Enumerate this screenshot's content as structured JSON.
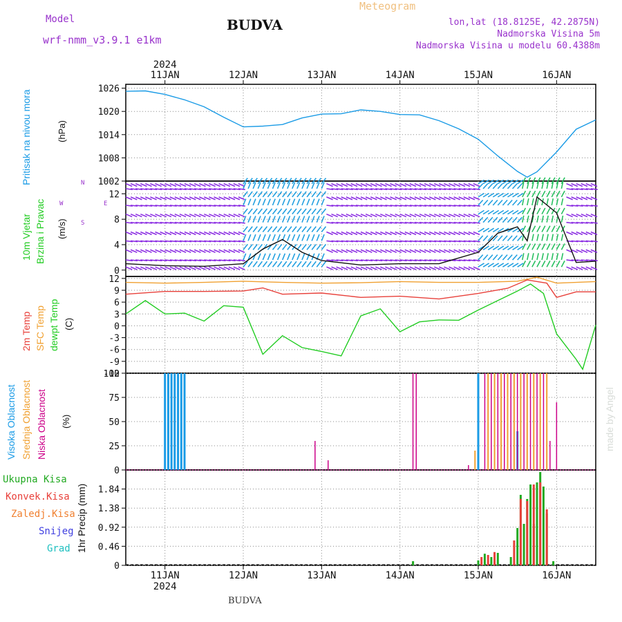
{
  "header": {
    "station": "BUDVA",
    "model_label": "Model",
    "model_name": "wrf-nmm_v3.9.1 e1km",
    "product": "Meteogram",
    "lonlat": "lon,lat (18.8125E, 42.2875N)",
    "elevation": "Nadmorska Visina 5m",
    "model_elevation": "Nadmorska Visina u modelu 60.4388m",
    "watermark": "made by Angel",
    "footer_station": "BUDVA"
  },
  "time_axis": {
    "year": "2024",
    "days": [
      "11JAN",
      "12JAN",
      "13JAN",
      "14JAN",
      "15JAN",
      "16JAN"
    ],
    "start": "2024-01-10T12:00",
    "end": "2024-01-16T12:00"
  },
  "colors": {
    "pressure": "#1a9be6",
    "temp2m": "#e8403a",
    "sfc_temp": "#f0a030",
    "dewpoint": "#22cc22",
    "wind_low": "#8a2be2",
    "wind_mid": "#22a0e0",
    "wind_high": "#28c060",
    "cloud_high": "#1a9be6",
    "cloud_mid": "#f0a030",
    "cloud_low": "#cc0088",
    "precip_total": "#22aa22",
    "precip_conv": "#e8403a",
    "precip_frozen": "#f08030",
    "snow": "#4040e0",
    "hail": "#20c0c0",
    "title_purple": "#9933cc",
    "meteogram_orange": "#f0c080"
  },
  "chart_data": [
    {
      "type": "line",
      "id": "pressure",
      "ylabel": [
        "Pritisak na nivou mora",
        "(hPa)"
      ],
      "ylim": [
        1002,
        1027
      ],
      "yticks": [
        1002,
        1008,
        1014,
        1020,
        1026
      ],
      "grid": true,
      "series": [
        {
          "name": "Pritisak na nivou mora",
          "x": [
            "2024-01-10T12:00",
            "2024-01-10T18:00",
            "2024-01-11T00:00",
            "2024-01-11T06:00",
            "2024-01-11T12:00",
            "2024-01-11T18:00",
            "2024-01-12T00:00",
            "2024-01-12T06:00",
            "2024-01-12T12:00",
            "2024-01-12T18:00",
            "2024-01-13T00:00",
            "2024-01-13T06:00",
            "2024-01-13T12:00",
            "2024-01-13T18:00",
            "2024-01-14T00:00",
            "2024-01-14T06:00",
            "2024-01-14T12:00",
            "2024-01-14T18:00",
            "2024-01-15T00:00",
            "2024-01-15T06:00",
            "2024-01-15T12:00",
            "2024-01-15T15:00",
            "2024-01-15T18:00",
            "2024-01-16T00:00",
            "2024-01-16T06:00",
            "2024-01-16T12:00"
          ],
          "y": [
            1025.2,
            1025.3,
            1024.4,
            1023.0,
            1021.2,
            1018.5,
            1016.0,
            1016.2,
            1016.6,
            1018.3,
            1019.3,
            1019.4,
            1020.4,
            1020.0,
            1019.2,
            1019.1,
            1017.6,
            1015.5,
            1012.8,
            1008.5,
            1004.5,
            1003.0,
            1004.4,
            1009.5,
            1015.4,
            1017.8
          ]
        }
      ]
    },
    {
      "type": "line",
      "id": "wind",
      "ylabel": [
        "10m Vjetar",
        "Brzina i Pravac",
        "(m/s)"
      ],
      "compass": [
        "N",
        "W",
        "E",
        "S"
      ],
      "ylim": [
        -1,
        14
      ],
      "yticks": [
        0,
        4,
        8,
        12
      ],
      "grid": true,
      "note": "wind barbs drawn as arrows; colours vary by speed",
      "series": [
        {
          "name": "Brzina",
          "x": [
            "2024-01-10T12:00",
            "2024-01-11T00:00",
            "2024-01-11T12:00",
            "2024-01-12T00:00",
            "2024-01-12T06:00",
            "2024-01-12T12:00",
            "2024-01-12T18:00",
            "2024-01-13T00:00",
            "2024-01-13T12:00",
            "2024-01-14T00:00",
            "2024-01-14T12:00",
            "2024-01-15T00:00",
            "2024-01-15T06:00",
            "2024-01-15T12:00",
            "2024-01-15T15:00",
            "2024-01-15T18:00",
            "2024-01-16T00:00",
            "2024-01-16T06:00",
            "2024-01-16T12:00"
          ],
          "y": [
            1.0,
            0.7,
            0.6,
            1.0,
            3.3,
            4.8,
            2.8,
            1.5,
            0.8,
            1.0,
            1.0,
            2.8,
            5.8,
            6.8,
            4.6,
            11.5,
            9.0,
            1.2,
            1.4
          ]
        }
      ]
    },
    {
      "type": "line",
      "id": "temperature",
      "ylabel": [
        "2m Temp",
        "SFC Temp",
        "dewpt Temp",
        "(C)"
      ],
      "ylim": [
        -12,
        12.5
      ],
      "yticks": [
        -12,
        -9,
        -6,
        -3,
        0,
        3,
        6,
        9,
        12
      ],
      "grid": true,
      "series": [
        {
          "name": "2m Temp",
          "x": [
            "2024-01-10T12:00",
            "2024-01-11T00:00",
            "2024-01-11T12:00",
            "2024-01-12T00:00",
            "2024-01-12T06:00",
            "2024-01-12T12:00",
            "2024-01-13T00:00",
            "2024-01-13T12:00",
            "2024-01-14T00:00",
            "2024-01-14T12:00",
            "2024-01-15T00:00",
            "2024-01-15T09:00",
            "2024-01-15T15:00",
            "2024-01-15T21:00",
            "2024-01-16T00:00",
            "2024-01-16T06:00",
            "2024-01-16T12:00"
          ],
          "y": [
            8.0,
            8.7,
            8.7,
            8.8,
            9.6,
            8.0,
            8.3,
            7.2,
            7.5,
            6.8,
            8.2,
            9.5,
            11.6,
            10.8,
            7.2,
            8.6,
            8.6
          ]
        },
        {
          "name": "SFC Temp",
          "x": [
            "2024-01-10T12:00",
            "2024-01-11T00:00",
            "2024-01-11T12:00",
            "2024-01-12T00:00",
            "2024-01-12T12:00",
            "2024-01-13T00:00",
            "2024-01-13T12:00",
            "2024-01-14T00:00",
            "2024-01-14T12:00",
            "2024-01-15T00:00",
            "2024-01-15T12:00",
            "2024-01-15T18:00",
            "2024-01-16T00:00",
            "2024-01-16T12:00"
          ],
          "y": [
            11.0,
            10.8,
            11.0,
            11.3,
            11.0,
            10.8,
            10.9,
            11.2,
            11.0,
            11.0,
            11.3,
            12.3,
            10.8,
            11.2
          ]
        },
        {
          "name": "dewpt Temp",
          "x": [
            "2024-01-10T12:00",
            "2024-01-10T18:00",
            "2024-01-11T00:00",
            "2024-01-11T06:00",
            "2024-01-11T12:00",
            "2024-01-11T18:00",
            "2024-01-12T00:00",
            "2024-01-12T06:00",
            "2024-01-12T12:00",
            "2024-01-12T18:00",
            "2024-01-13T00:00",
            "2024-01-13T06:00",
            "2024-01-13T12:00",
            "2024-01-13T18:00",
            "2024-01-14T00:00",
            "2024-01-14T06:00",
            "2024-01-14T12:00",
            "2024-01-14T18:00",
            "2024-01-15T00:00",
            "2024-01-15T06:00",
            "2024-01-15T12:00",
            "2024-01-15T16:00",
            "2024-01-15T20:00",
            "2024-01-16T00:00",
            "2024-01-16T06:00",
            "2024-01-16T08:00",
            "2024-01-16T12:00"
          ],
          "y": [
            3.0,
            6.4,
            3.0,
            3.2,
            1.2,
            5.1,
            4.7,
            -7.2,
            -2.5,
            -5.5,
            -6.5,
            -7.6,
            2.5,
            4.3,
            -1.5,
            1.0,
            1.5,
            1.4,
            4.0,
            6.4,
            8.8,
            10.6,
            8.2,
            -2.0,
            -8.5,
            -11.0,
            0.2
          ]
        }
      ]
    },
    {
      "type": "bar",
      "id": "clouds",
      "ylabel": [
        "Visoka Oblacnost",
        "Srednja Oblacnost",
        "Niska Oblacnost",
        "(%)"
      ],
      "ylim": [
        0,
        100
      ],
      "yticks": [
        0,
        25,
        50,
        75,
        100
      ],
      "grid": true,
      "series": [
        {
          "name": "Visoka Oblacnost",
          "x": [
            "2024-01-11T00:00",
            "2024-01-11T01:00",
            "2024-01-11T02:00",
            "2024-01-11T03:00",
            "2024-01-11T04:00",
            "2024-01-11T05:00",
            "2024-01-11T06:00",
            "2024-01-15T00:00",
            "2024-01-15T12:00"
          ],
          "values": [
            100,
            100,
            100,
            100,
            100,
            100,
            100,
            100,
            40
          ]
        },
        {
          "name": "Srednja Oblacnost",
          "x": [
            "2024-01-14T23:00",
            "2024-01-15T03:00",
            "2024-01-15T05:00",
            "2024-01-15T07:00",
            "2024-01-15T09:00",
            "2024-01-15T11:00",
            "2024-01-15T13:00",
            "2024-01-15T15:00",
            "2024-01-15T17:00",
            "2024-01-15T19:00",
            "2024-01-15T21:00"
          ],
          "values": [
            20,
            100,
            100,
            100,
            100,
            100,
            100,
            100,
            100,
            100,
            100
          ]
        },
        {
          "name": "Niska Oblacnost",
          "x": [
            "2024-01-12T22:00",
            "2024-01-13T02:00",
            "2024-01-14T04:00",
            "2024-01-14T05:00",
            "2024-01-14T21:00",
            "2024-01-15T02:00",
            "2024-01-15T04:00",
            "2024-01-15T06:00",
            "2024-01-15T08:00",
            "2024-01-15T10:00",
            "2024-01-15T12:00",
            "2024-01-15T14:00",
            "2024-01-15T16:00",
            "2024-01-15T18:00",
            "2024-01-15T20:00",
            "2024-01-15T22:00",
            "2024-01-16T00:00"
          ],
          "values": [
            30,
            10,
            100,
            100,
            5,
            100,
            100,
            100,
            100,
            100,
            100,
            100,
            100,
            100,
            100,
            30,
            70
          ]
        }
      ]
    },
    {
      "type": "bar",
      "id": "precip",
      "ylabel": [
        "1hr Precip (mm)"
      ],
      "legend": [
        "Ukupna Kisa",
        "Konvek.Kisa",
        "Zaledj.Kisa",
        "Snijeg",
        "Grad"
      ],
      "ylim": [
        0,
        2.3
      ],
      "yticks": [
        0,
        0.46,
        0.92,
        1.38,
        1.84
      ],
      "grid": true,
      "series": [
        {
          "name": "Ukupna Kisa",
          "x": [
            "2024-01-14T04:00",
            "2024-01-15T00:00",
            "2024-01-15T02:00",
            "2024-01-15T04:00",
            "2024-01-15T06:00",
            "2024-01-15T10:00",
            "2024-01-15T12:00",
            "2024-01-15T13:00",
            "2024-01-15T14:00",
            "2024-01-15T15:00",
            "2024-01-15T16:00",
            "2024-01-15T17:00",
            "2024-01-15T18:00",
            "2024-01-15T19:00",
            "2024-01-15T20:00",
            "2024-01-15T21:00",
            "2024-01-15T23:00"
          ],
          "values": [
            0.1,
            0.12,
            0.28,
            0.2,
            0.3,
            0.2,
            0.9,
            1.7,
            1.0,
            1.6,
            1.95,
            1.0,
            2.0,
            2.25,
            1.9,
            1.25,
            0.1
          ]
        },
        {
          "name": "Konvek.Kisa",
          "x": [
            "2024-01-15T01:00",
            "2024-01-15T03:00",
            "2024-01-15T05:00",
            "2024-01-15T11:00",
            "2024-01-15T13:00",
            "2024-01-15T15:00",
            "2024-01-15T17:00",
            "2024-01-15T19:00",
            "2024-01-15T21:00"
          ],
          "values": [
            0.2,
            0.25,
            0.32,
            0.6,
            1.6,
            1.55,
            1.95,
            2.0,
            1.35
          ]
        }
      ]
    }
  ]
}
